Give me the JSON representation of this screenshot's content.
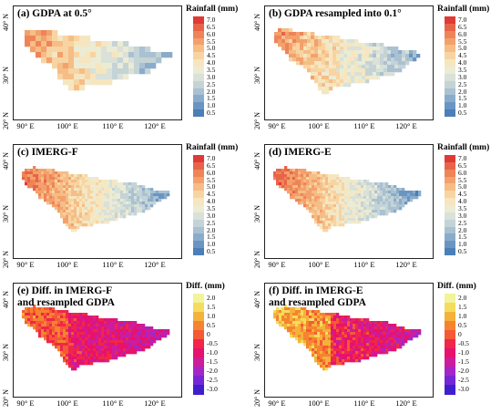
{
  "panels": [
    {
      "title": "(a) GDPA at 0.5°",
      "legend_title": "Rainfall (mm)",
      "scale": "rain",
      "lat_labels": [
        "40° N",
        "30° N",
        "20° N"
      ],
      "style": "coarse",
      "variant": "gdpa"
    },
    {
      "title": "(b) GDPA resampled into 0.1°",
      "legend_title": "Rainfall (mm)",
      "scale": "rain",
      "lat_labels": [
        "40° N",
        "30° N",
        "20° N"
      ],
      "style": "medium",
      "variant": "gdpa"
    },
    {
      "title": "(c) IMERG-F",
      "legend_title": "Rainfall (mm)",
      "scale": "rain",
      "lat_labels": [
        "40° N",
        "30° N",
        "20° N"
      ],
      "style": "fine",
      "variant": "imergf"
    },
    {
      "title": "(d) IMERG-E",
      "legend_title": "Rainfall (mm)",
      "scale": "rain",
      "lat_labels": [
        "40° N",
        "30° N",
        "20° N"
      ],
      "style": "fine",
      "variant": "imerge"
    },
    {
      "title": "(e) Diff. in IMERG-F\nand resampled GDPA",
      "legend_title": "Diff. (mm)",
      "scale": "diff",
      "lat_labels": [
        "40° N",
        "30° N",
        "20° N"
      ],
      "style": "fine",
      "variant": "difff"
    },
    {
      "title": "(f) Diff. in IMERG-E\nand resampled GDPA",
      "legend_title": "Diff. (mm)",
      "scale": "diff",
      "lat_labels": [
        "40° N",
        "30° N",
        "20° N"
      ],
      "style": "fine",
      "variant": "diffe"
    }
  ],
  "lon_labels": [
    "90° E",
    "100° E",
    "110° E",
    "120° E"
  ],
  "scales": {
    "rain": {
      "ticks": [
        "7.0",
        "6.5",
        "6.0",
        "5.5",
        "5.0",
        "4.5",
        "4.0",
        "3.5",
        "3.0",
        "2.5",
        "2.0",
        "1.5",
        "1.0",
        "0.5"
      ],
      "colors": [
        "#4a7fb8",
        "#6a95c3",
        "#8aacca",
        "#a9c1d2",
        "#c4d3d6",
        "#d9e1d8",
        "#ecebd3",
        "#f6e6bf",
        "#f8d4a2",
        "#f6bd86",
        "#f3a16c",
        "#ef8458",
        "#e86448",
        "#df3a35"
      ]
    },
    "diff": {
      "ticks": [
        "2.0",
        "1.5",
        "1.0",
        "0.5",
        "0",
        "-0.5",
        "-1.0",
        "-1.5",
        "-2.0",
        "-2.5",
        "-3.0"
      ],
      "colors": [
        "#f3f399",
        "#f3dc5e",
        "#f4b23a",
        "#f5832f",
        "#f45a35",
        "#f0264a",
        "#e6126d",
        "#cd1c9c",
        "#a526c6",
        "#7526d6",
        "#3f1fcc"
      ]
    }
  }
}
